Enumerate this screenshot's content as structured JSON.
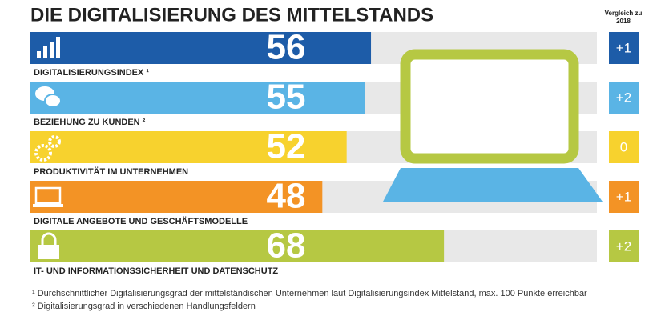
{
  "chart_data": {
    "type": "bar",
    "orientation": "horizontal",
    "title": "DIE DIGITALISIERUNG DES MITTELSTANDS",
    "categories": [
      "DIGITALISIERUNGSINDEX ¹",
      "BEZIEHUNG ZU KUNDEN ²",
      "PRODUKTIVITÄT IM UNTERNEHMEN",
      "DIGITALE ANGEBOTE UND GESCHÄFTSMODELLE",
      "IT- UND INFORMATIONSSICHERHEIT UND DATENSCHUTZ"
    ],
    "values": [
      56,
      55,
      52,
      48,
      68
    ],
    "colors": [
      "#1d5ca8",
      "#5ab4e5",
      "#f7d22e",
      "#f39325",
      "#b6c843"
    ],
    "xlim": [
      0,
      100
    ],
    "comparison": {
      "title": "Vergleich zu 2018",
      "values": [
        1,
        2,
        0,
        1,
        2
      ],
      "value_labels": [
        "+1",
        "+2",
        "0",
        "+1",
        "+2"
      ]
    },
    "footnotes": [
      "¹ Durchschnittlicher Digitalisierungsgrad der mittelständischen Unternehmen laut Digitalisierungsindex Mittelstand, max. 100 Punkte erreichbar",
      "² Digitalisierungsgrad in verschiedenen Handlungsfeldern"
    ]
  }
}
